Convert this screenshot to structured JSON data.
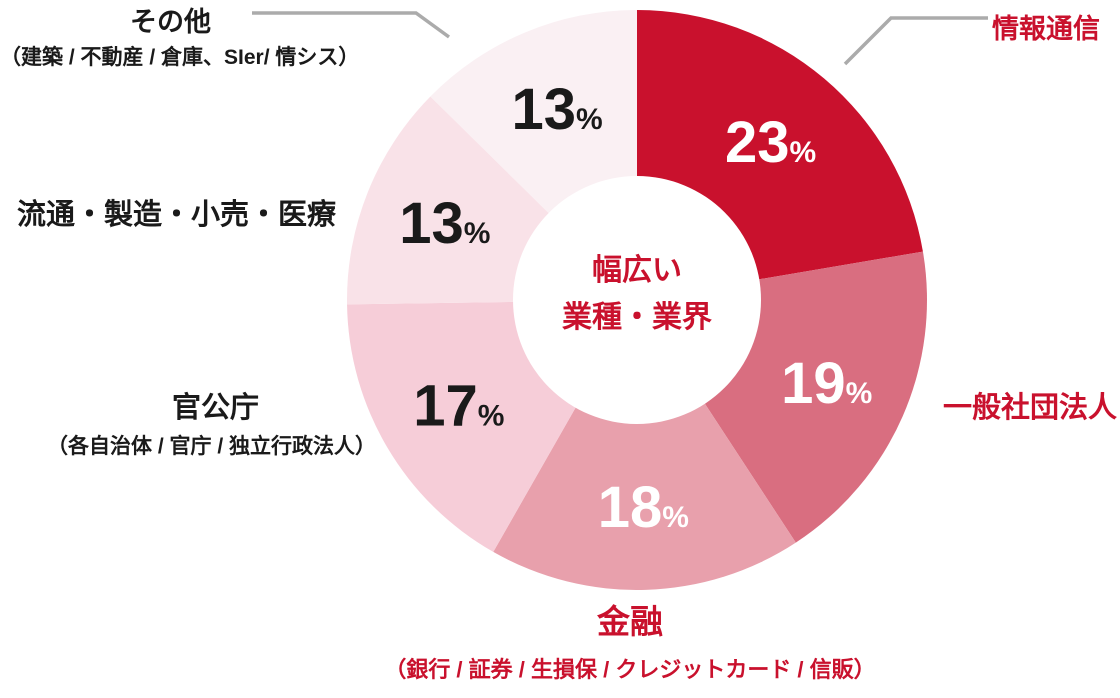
{
  "page": {
    "background": "#FFFFFF"
  },
  "colors": {
    "accent_red": "#C9112D",
    "text_black": "#1A1A1A",
    "leader_gray": "#ABABAB",
    "pct_white": "#FFFFFF",
    "background": "#FFFFFF"
  },
  "chart_data": {
    "type": "pie",
    "variant": "donut",
    "direction": "clockwise",
    "start_angle_deg": 0,
    "unit": "%",
    "legend_position": "around",
    "center_label": {
      "line1": "幅広い",
      "line2": "業種・業界"
    },
    "categories": [
      "情報通信",
      "一般社団法人",
      "金融",
      "官公庁",
      "流通・製造・小売・医療",
      "その他"
    ],
    "values": [
      23,
      19,
      18,
      17,
      13,
      13
    ],
    "slices": [
      {
        "label": "情報通信",
        "sub_label": "",
        "value": 23,
        "color": "#C9112D",
        "pct_color": "#FFFFFF",
        "label_color": "#C9112D"
      },
      {
        "label": "一般社団法人",
        "sub_label": "",
        "value": 19,
        "color": "#D96E80",
        "pct_color": "#FFFFFF",
        "label_color": "#C9112D"
      },
      {
        "label": "金融",
        "sub_label": "（銀行 / 証券 / 生損保 / クレジットカード / 信販）",
        "value": 18,
        "color": "#E8A0AC",
        "pct_color": "#FFFFFF",
        "label_color": "#C9112D"
      },
      {
        "label": "官公庁",
        "sub_label": "（各自治体 / 官庁 / 独立行政法人）",
        "value": 17,
        "color": "#F6CDD8",
        "pct_color": "#1A1A1A",
        "label_color": "#1A1A1A"
      },
      {
        "label": "流通・製造・小売・医療",
        "sub_label": "",
        "value": 13,
        "color": "#F9E2E8",
        "pct_color": "#1A1A1A",
        "label_color": "#1A1A1A"
      },
      {
        "label": "その他",
        "sub_label": "（建築 / 不動産 / 倉庫、SIer/ 情シス）",
        "value": 13,
        "color": "#FAF0F3",
        "pct_color": "#1A1A1A",
        "label_color": "#1A1A1A"
      }
    ]
  }
}
